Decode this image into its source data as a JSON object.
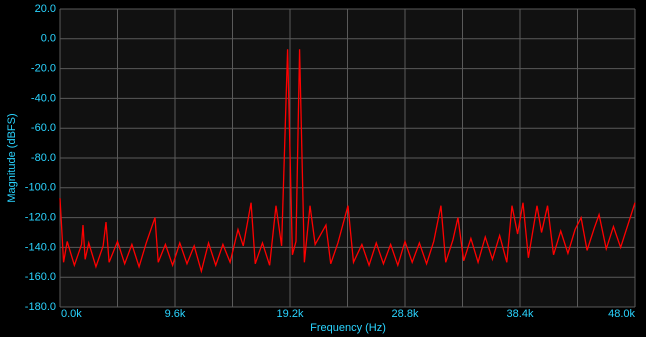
{
  "chart_data": {
    "type": "line",
    "xlabel": "Frequency (Hz)",
    "ylabel": "Magnitude (dBFS)",
    "color": "#ff0000",
    "x": [
      0,
      300,
      600,
      1200,
      1800,
      1920,
      2100,
      2400,
      3000,
      3600,
      3840,
      4100,
      4800,
      5400,
      6000,
      6600,
      7200,
      7930,
      8200,
      8800,
      9400,
      10000,
      10600,
      11200,
      11800,
      12400,
      13000,
      13600,
      14200,
      14860,
      15300,
      15950,
      16300,
      16900,
      17500,
      18030,
      18500,
      19000,
      19400,
      19700,
      20000,
      20400,
      20870,
      21300,
      22200,
      22600,
      23200,
      24040,
      24500,
      25200,
      25800,
      26400,
      27000,
      27600,
      28200,
      28800,
      29400,
      30000,
      30600,
      31200,
      31800,
      32200,
      32800,
      33220,
      33700,
      34300,
      34900,
      35500,
      36100,
      36700,
      37300,
      37730,
      38200,
      38650,
      39100,
      39820,
      40200,
      40700,
      41200,
      41800,
      42400,
      43000,
      43500,
      44000,
      44600,
      45000,
      45600,
      46200,
      46800,
      47400,
      48000
    ],
    "values": [
      -107,
      -150,
      -136,
      -152,
      -138,
      -125,
      -148,
      -137,
      -153,
      -139,
      -123,
      -150,
      -136,
      -151,
      -138,
      -153,
      -137,
      -120,
      -150,
      -138,
      -152,
      -137,
      -151,
      -139,
      -156,
      -137,
      -152,
      -138,
      -150,
      -128,
      -139,
      -110,
      -151,
      -137,
      -152,
      -112,
      -139,
      -7,
      -145,
      -136,
      -7,
      -150,
      -112,
      -138,
      -125,
      -151,
      -137,
      -112,
      -150,
      -138,
      -152,
      -137,
      -151,
      -138,
      -152,
      -136,
      -150,
      -137,
      -151,
      -136,
      -112,
      -150,
      -135,
      -120,
      -149,
      -134,
      -150,
      -133,
      -148,
      -132,
      -150,
      -112,
      -131,
      -110,
      -147,
      -112,
      -130,
      -112,
      -145,
      -129,
      -144,
      -128,
      -120,
      -142,
      -127,
      -118,
      -141,
      -126,
      -140,
      -125,
      -110
    ],
    "xlim": [
      0,
      48000
    ],
    "xticks": [
      {
        "value": 0,
        "label": "0.0k"
      },
      {
        "value": 9600,
        "label": "9.6k"
      },
      {
        "value": 19200,
        "label": "19.2k"
      },
      {
        "value": 28800,
        "label": "28.8k"
      },
      {
        "value": 38400,
        "label": "38.4k"
      },
      {
        "value": 48000,
        "label": "48.0k"
      }
    ],
    "x_minor_ticks": [
      4800,
      14400,
      24000,
      33600,
      43200
    ],
    "ylim": [
      -180,
      20
    ],
    "yticks": [
      {
        "value": 20,
        "label": "20.0"
      },
      {
        "value": 0,
        "label": "0.0"
      },
      {
        "value": -20,
        "label": "-20.0"
      },
      {
        "value": -40,
        "label": "-40.0"
      },
      {
        "value": -60,
        "label": "-60.0"
      },
      {
        "value": -80,
        "label": "-80.0"
      },
      {
        "value": -100,
        "label": "-100.0"
      },
      {
        "value": -120,
        "label": "-120.0"
      },
      {
        "value": -140,
        "label": "-140.0"
      },
      {
        "value": -160,
        "label": "-160.0"
      },
      {
        "value": -180,
        "label": "-180.0"
      }
    ],
    "grid": true
  }
}
